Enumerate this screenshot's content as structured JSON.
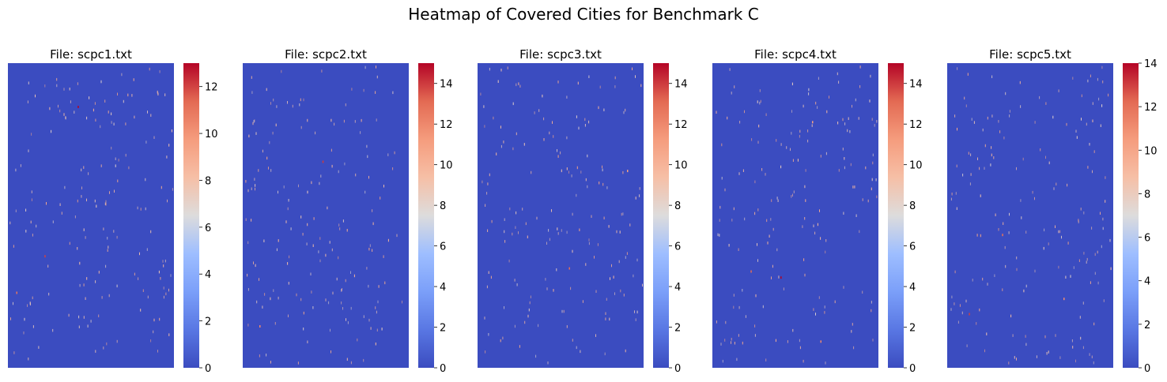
{
  "figure": {
    "title": "Heatmap of Covered Cities for Benchmark C"
  },
  "colors": {
    "cmap": "coolwarm",
    "low": "#3b4cc0",
    "high": "#b40426",
    "background": "#ffffff"
  },
  "chart_data": [
    {
      "type": "heatmap",
      "title": "File: scpc1.txt",
      "colorbar": {
        "min": 0,
        "max": 13,
        "ticks": [
          0,
          2,
          4,
          6,
          8,
          10,
          12
        ]
      },
      "dominant_value": 0,
      "highlights": [
        {
          "col": 0.42,
          "row": 0.14,
          "value": 13
        },
        {
          "col": 0.22,
          "row": 0.63,
          "value": 12
        },
        {
          "col": 0.05,
          "row": 0.75,
          "value": 11
        }
      ]
    },
    {
      "type": "heatmap",
      "title": "File: scpc2.txt",
      "colorbar": {
        "min": 0,
        "max": 15,
        "ticks": [
          0,
          2,
          4,
          6,
          8,
          10,
          12,
          14
        ]
      },
      "dominant_value": 0,
      "highlights": [
        {
          "col": 0.48,
          "row": 0.32,
          "value": 14
        },
        {
          "col": 0.1,
          "row": 0.86,
          "value": 12
        }
      ]
    },
    {
      "type": "heatmap",
      "title": "File: scpc3.txt",
      "colorbar": {
        "min": 0,
        "max": 15,
        "ticks": [
          0,
          2,
          4,
          6,
          8,
          10,
          12,
          14
        ]
      },
      "dominant_value": 0,
      "highlights": [
        {
          "col": 0.55,
          "row": 0.67,
          "value": 13
        },
        {
          "col": 0.9,
          "row": 0.35,
          "value": 11
        }
      ]
    },
    {
      "type": "heatmap",
      "title": "File: scpc4.txt",
      "colorbar": {
        "min": 0,
        "max": 15,
        "ticks": [
          0,
          2,
          4,
          6,
          8,
          10,
          12,
          14
        ]
      },
      "dominant_value": 0,
      "highlights": [
        {
          "col": 0.41,
          "row": 0.7,
          "value": 15
        },
        {
          "col": 0.23,
          "row": 0.68,
          "value": 13
        },
        {
          "col": 0.65,
          "row": 0.91,
          "value": 12
        },
        {
          "col": 0.6,
          "row": 0.19,
          "value": 11
        }
      ]
    },
    {
      "type": "heatmap",
      "title": "File: scpc5.txt",
      "colorbar": {
        "min": 0,
        "max": 14,
        "ticks": [
          0,
          2,
          4,
          6,
          8,
          10,
          12,
          14
        ]
      },
      "dominant_value": 0,
      "highlights": [
        {
          "col": 0.13,
          "row": 0.82,
          "value": 13
        },
        {
          "col": 0.33,
          "row": 0.56,
          "value": 12
        },
        {
          "col": 0.7,
          "row": 0.77,
          "value": 11
        }
      ]
    }
  ]
}
